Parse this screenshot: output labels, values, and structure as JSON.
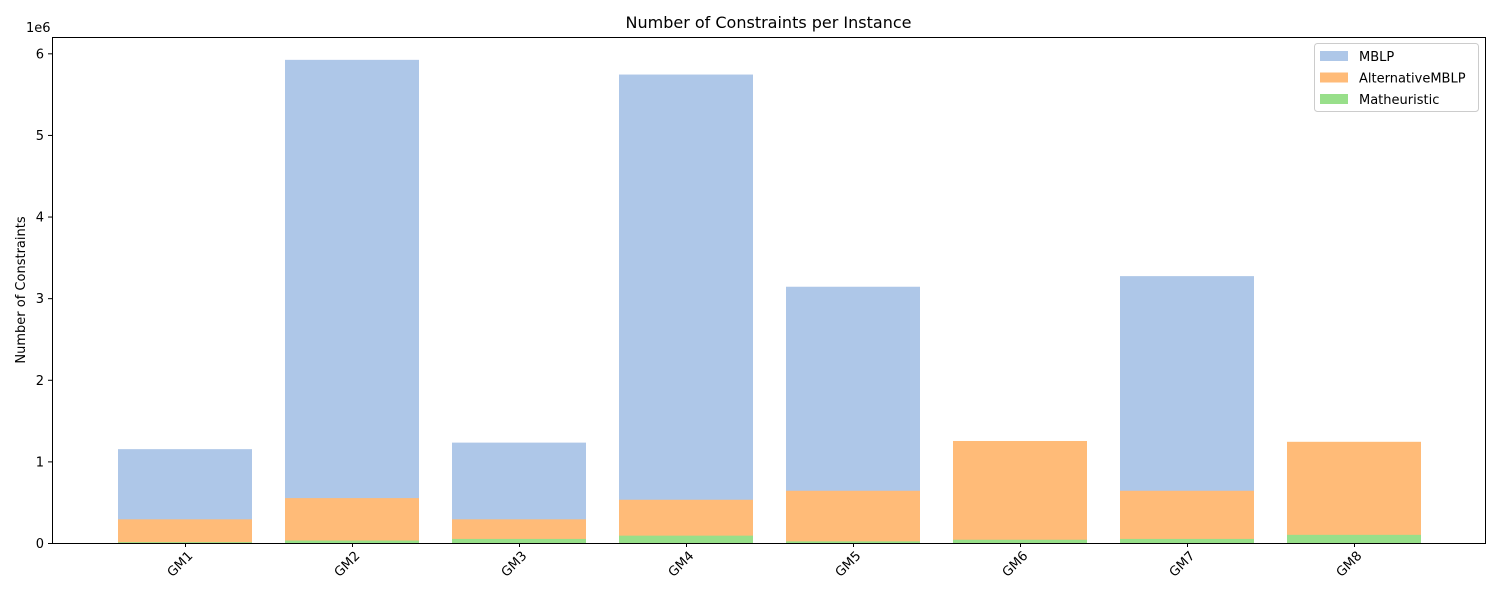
{
  "chart_data": {
    "type": "bar",
    "title": "Number of Constraints per Instance",
    "xlabel": "",
    "ylabel": "Number of Constraints",
    "y_offset_label": "1e6",
    "categories": [
      "GM1",
      "GM2",
      "GM3",
      "GM4",
      "GM5",
      "GM6",
      "GM7",
      "GM8"
    ],
    "overlap": true,
    "series": [
      {
        "name": "MBLP",
        "color": "#aec7e8",
        "values": [
          1150000,
          5920000,
          1230000,
          5740000,
          3140000,
          0,
          3270000,
          0
        ]
      },
      {
        "name": "AlternativeMBLP",
        "color": "#ffbb78",
        "values": [
          290000,
          550000,
          290000,
          530000,
          640000,
          1250000,
          640000,
          1240000
        ]
      },
      {
        "name": "Matheuristic",
        "color": "#98df8a",
        "values": [
          10000,
          30000,
          50000,
          90000,
          20000,
          40000,
          50000,
          100000
        ]
      }
    ],
    "ylim": [
      0,
      6200000
    ],
    "yticks": [
      0,
      1000000,
      2000000,
      3000000,
      4000000,
      5000000,
      6000000
    ],
    "ytick_labels": [
      "0",
      "1",
      "2",
      "3",
      "4",
      "5",
      "6"
    ],
    "grid": false,
    "legend_position": "top-right"
  }
}
